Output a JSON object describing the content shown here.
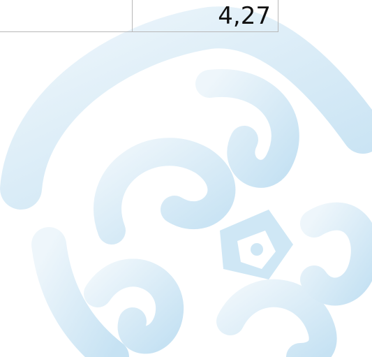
{
  "table": {
    "rows": [
      [
        "4,27"
      ]
    ]
  }
}
